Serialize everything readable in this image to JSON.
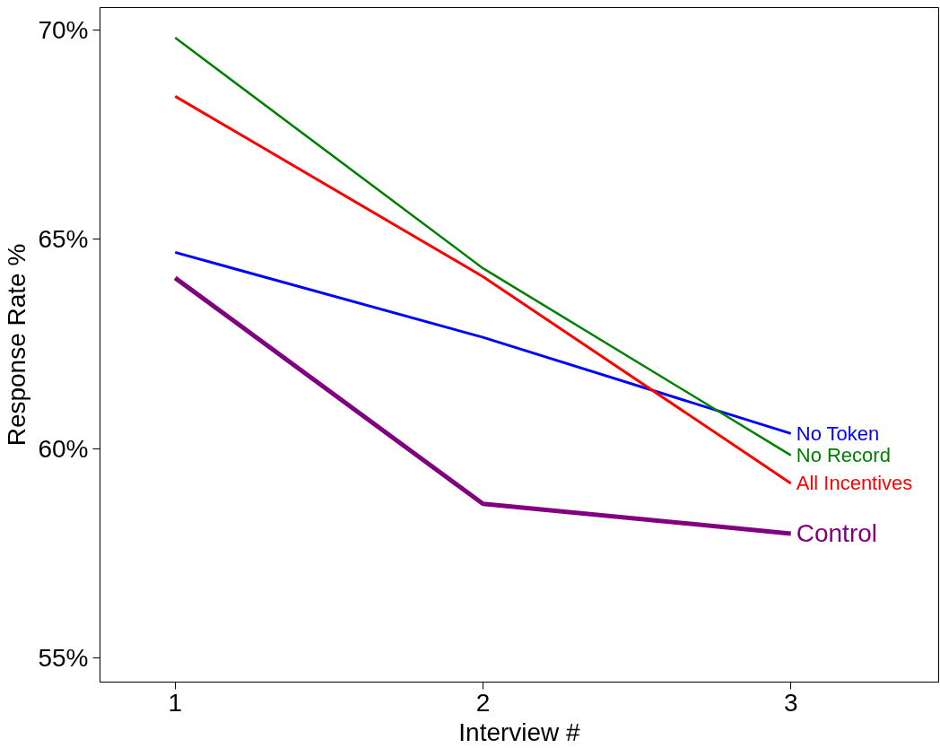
{
  "chart_data": {
    "type": "line",
    "xlabel": "Interview #",
    "ylabel": "Response Rate %",
    "x": [
      1,
      2,
      3
    ],
    "xlim": [
      0.756,
      3.48
    ],
    "xticks": [
      1,
      2,
      3
    ],
    "ylim": [
      54.42,
      70.54
    ],
    "yticks": [
      {
        "value": 55,
        "label": "55%"
      },
      {
        "value": 60,
        "label": "60%"
      },
      {
        "value": 65,
        "label": "65%"
      },
      {
        "value": 70,
        "label": "70%"
      }
    ],
    "grid": false,
    "marker": "none",
    "line_style": "solid",
    "series": [
      {
        "name": "No Token",
        "color": "#0000ff",
        "values": [
          64.69,
          62.66,
          60.36
        ]
      },
      {
        "name": "No Record",
        "color": "#008000",
        "values": [
          69.82,
          64.31,
          59.84
        ]
      },
      {
        "name": "All Incentives",
        "color": "#ff0000",
        "values": [
          68.42,
          64.11,
          59.17
        ]
      },
      {
        "name": "Control",
        "color": "#800080",
        "values": [
          64.08,
          58.68,
          57.97
        ]
      }
    ]
  }
}
